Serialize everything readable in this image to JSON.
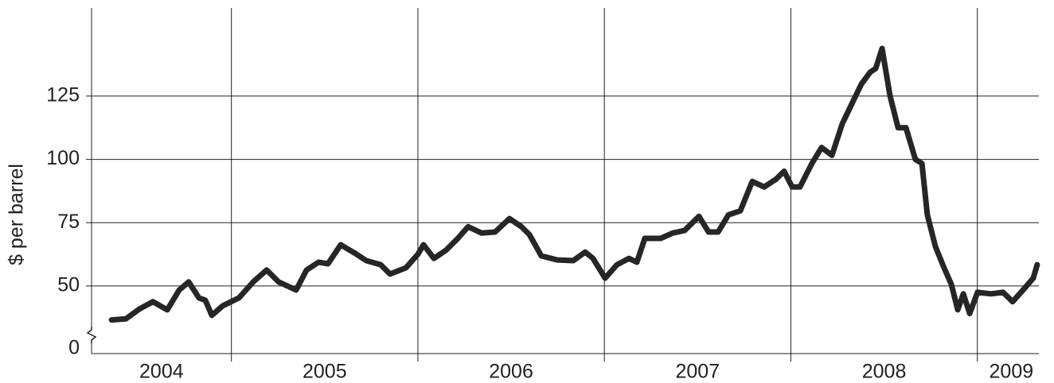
{
  "chart_data": {
    "type": "line",
    "y_label": "$ per barrel",
    "xlim": [
      2004.25,
      2009.33
    ],
    "xticks": [
      2004,
      2005,
      2006,
      2007,
      2008,
      2009
    ],
    "ylim": [
      23.3,
      159.8
    ],
    "yticks": [
      0,
      50,
      75,
      100,
      125
    ],
    "y_axis_break": true,
    "grid": true,
    "series": [
      {
        "color": "#262626",
        "x": [
          2004.357,
          2004.434,
          2004.506,
          2004.579,
          2004.656,
          2004.72,
          2004.771,
          2004.826,
          2004.86,
          2004.895,
          2004.954,
          2005.04,
          2005.117,
          2005.189,
          2005.253,
          2005.347,
          2005.403,
          2005.467,
          2005.518,
          2005.586,
          2005.659,
          2005.723,
          2005.8,
          2005.851,
          2005.936,
          2006.0,
          2006.03,
          2006.086,
          2006.15,
          2006.214,
          2006.269,
          2006.342,
          2006.414,
          2006.491,
          2006.555,
          2006.598,
          2006.662,
          2006.747,
          2006.833,
          2006.897,
          2006.939,
          2007.004,
          2007.068,
          2007.132,
          2007.174,
          2007.217,
          2007.302,
          2007.366,
          2007.43,
          2007.507,
          2007.559,
          2007.61,
          2007.665,
          2007.729,
          2007.793,
          2007.857,
          2007.921,
          2007.964,
          2008.007,
          2008.049,
          2008.113,
          2008.165,
          2008.22,
          2008.276,
          2008.327,
          2008.378,
          2008.425,
          2008.455,
          2008.489,
          2008.532,
          2008.575,
          2008.617,
          2008.668,
          2008.703,
          2008.732,
          2008.775,
          2008.818,
          2008.861,
          2008.895,
          2008.925,
          2008.959,
          2009.001,
          2009.074,
          2009.138,
          2009.189,
          2009.245,
          2009.3,
          2009.321
        ],
        "values": [
          36.6,
          37.0,
          40.9,
          43.8,
          40.6,
          48.4,
          51.6,
          45.3,
          44.4,
          38.4,
          42.2,
          45.3,
          51.6,
          56.3,
          51.6,
          48.4,
          56.3,
          59.4,
          58.8,
          66.3,
          63.1,
          60.0,
          58.4,
          54.7,
          57.2,
          62.5,
          66.3,
          60.9,
          64.1,
          68.8,
          73.4,
          70.9,
          71.3,
          76.6,
          73.4,
          70.3,
          61.9,
          60.3,
          60.0,
          63.4,
          60.9,
          53.1,
          58.4,
          60.9,
          59.4,
          68.8,
          68.8,
          70.9,
          71.9,
          77.5,
          71.3,
          71.3,
          78.1,
          79.7,
          91.3,
          89.1,
          92.2,
          95.3,
          89.1,
          89.1,
          98.4,
          104.7,
          101.6,
          114.1,
          121.9,
          129.7,
          134.4,
          135.9,
          143.8,
          125.0,
          112.5,
          112.5,
          100.0,
          98.4,
          78.1,
          65.6,
          57.8,
          50.6,
          40.6,
          46.9,
          39.1,
          47.5,
          46.9,
          47.5,
          43.8,
          48.4,
          53.1,
          58.4
        ]
      }
    ]
  }
}
